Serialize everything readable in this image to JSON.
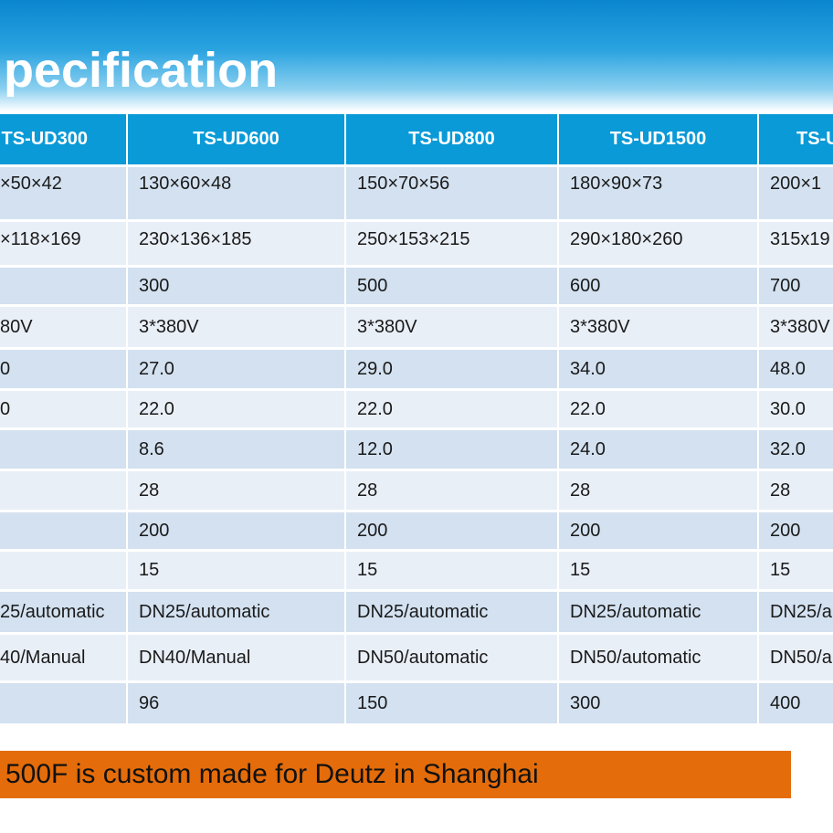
{
  "header": {
    "title": "pecification"
  },
  "table": {
    "columns": [
      "TS-UD300",
      "TS-UD600",
      "TS-UD800",
      "TS-UD1500",
      "TS-U"
    ],
    "rows": [
      [
        "×50×42",
        "130×60×48",
        "150×70×56",
        "180×90×73",
        "200×1"
      ],
      [
        "×118×169",
        "230×136×185",
        "250×153×215",
        "290×180×260",
        "315x19"
      ],
      [
        "",
        "300",
        "500",
        "600",
        "700"
      ],
      [
        "80V",
        "3*380V",
        "3*380V",
        "3*380V",
        "3*380V"
      ],
      [
        "0",
        "27.0",
        "29.0",
        "34.0",
        "48.0"
      ],
      [
        "0",
        "22.0",
        "22.0",
        "22.0",
        "30.0"
      ],
      [
        "",
        "8.6",
        "12.0",
        "24.0",
        "32.0"
      ],
      [
        "",
        "28",
        "28",
        "28",
        "28"
      ],
      [
        "",
        "200",
        "200",
        "200",
        "200"
      ],
      [
        "",
        "15",
        "15",
        "15",
        "15"
      ],
      [
        "25/automatic",
        "DN25/automatic",
        "DN25/automatic",
        "DN25/automatic",
        "DN25/a"
      ],
      [
        "40/Manual",
        "DN40/Manual",
        "DN50/automatic",
        "DN50/automatic",
        "DN50/a"
      ],
      [
        "",
        "96",
        "150",
        "300",
        "400"
      ]
    ]
  },
  "footer": {
    "note": "500F is custom made for Deutz in Shanghai"
  }
}
